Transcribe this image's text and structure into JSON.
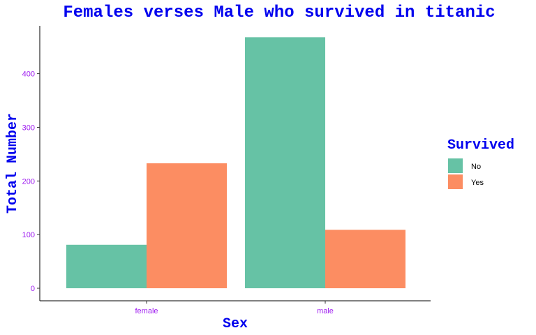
{
  "chart_data": {
    "type": "bar",
    "title": "Females verses Male who survived in titanic",
    "xlabel": "Sex",
    "ylabel": "Total Number",
    "categories": [
      "female",
      "male"
    ],
    "series": [
      {
        "name": "No",
        "values": [
          81,
          468
        ]
      },
      {
        "name": "Yes",
        "values": [
          233,
          109
        ]
      }
    ],
    "ylim": [
      0,
      470
    ],
    "yticks": [
      0,
      100,
      200,
      300,
      400
    ],
    "grid": false,
    "legend": {
      "title": "Survived",
      "placement": "right",
      "entries": [
        "No",
        "Yes"
      ]
    },
    "colors": {
      "No": "#66c2a5",
      "Yes": "#fc8d62",
      "title": "#0000ee",
      "ticks": "#a020f0"
    }
  }
}
